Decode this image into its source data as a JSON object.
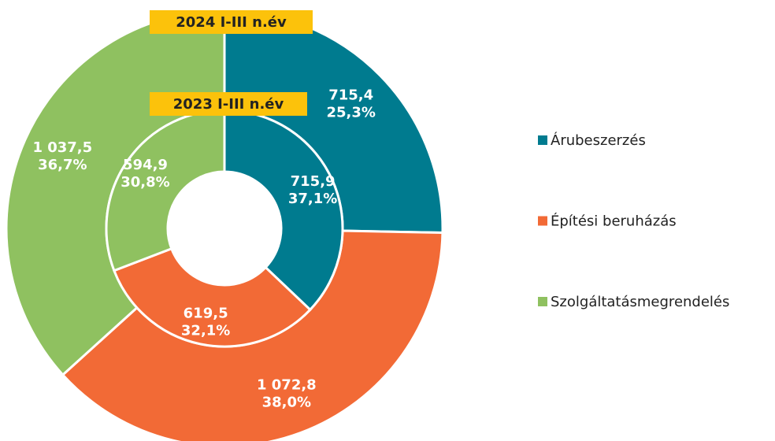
{
  "chart_data": {
    "type": "donut",
    "categories": [
      "Árubeszerzés",
      "Építési beruházás",
      "Szolgáltatásmegrendelés"
    ],
    "colors": [
      "#007b8f",
      "#f26a36",
      "#8fc160"
    ],
    "series": [
      {
        "name": "2024 I-III n.év",
        "values": [
          715.4,
          1072.8,
          1037.5
        ],
        "value_labels": [
          "715,4",
          "1 072,8",
          "1 037,5"
        ],
        "shares": [
          25.3,
          38.0,
          36.7
        ],
        "share_labels": [
          "25,3%",
          "38,0%",
          "36,7%"
        ]
      },
      {
        "name": "2023 I-III n.év",
        "values": [
          715.9,
          619.5,
          594.9
        ],
        "value_labels": [
          "715,9",
          "619,5",
          "594,9"
        ],
        "shares": [
          37.1,
          32.1,
          30.8
        ],
        "share_labels": [
          "37,1%",
          "32,1%",
          "30,8%"
        ]
      }
    ]
  }
}
